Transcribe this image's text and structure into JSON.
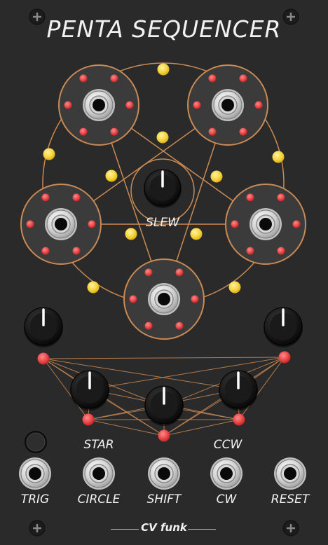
{
  "module": {
    "title": "PENTA SEQUENCER",
    "brand": "CV funk",
    "knobs": {
      "slew_label": "SLEW"
    },
    "labels": {
      "star": "STAR",
      "ccw": "CCW",
      "trig": "TRIG",
      "circle": "CIRCLE",
      "shift": "SHIFT",
      "cw": "CW",
      "reset": "RESET"
    }
  },
  "colors": {
    "panel": "#2a2a2a",
    "ring": "#c98a55",
    "yellow_led": "#f5d33a",
    "red_led": "#e84545",
    "text": "#f2f2f2"
  }
}
